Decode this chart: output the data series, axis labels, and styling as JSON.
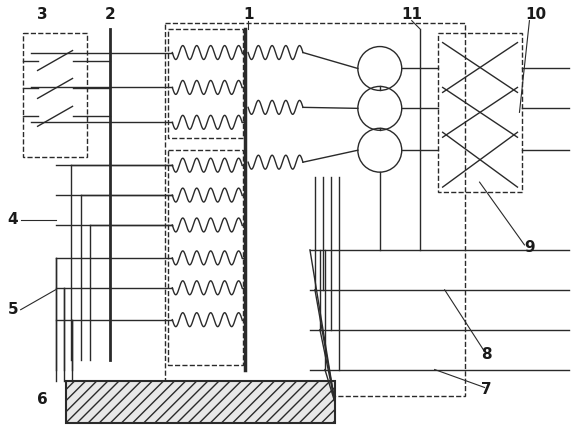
{
  "bg_color": "#ffffff",
  "line_color": "#2a2a2a",
  "fig_width": 5.86,
  "fig_height": 4.38,
  "dpi": 100
}
